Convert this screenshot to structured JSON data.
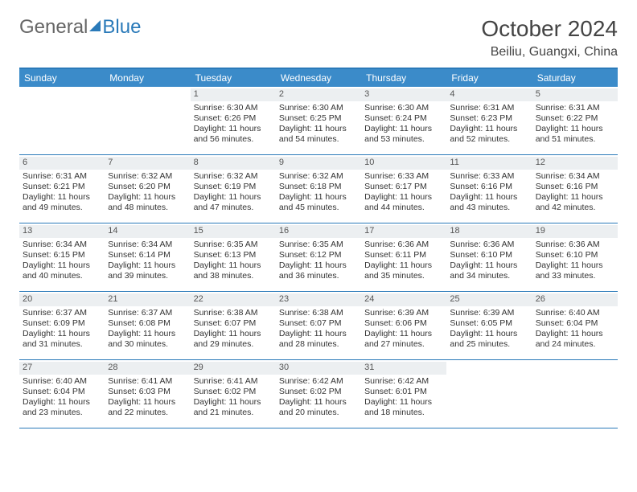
{
  "brand": {
    "part1": "General",
    "part2": "Blue"
  },
  "title": "October 2024",
  "location": "Beiliu, Guangxi, China",
  "colors": {
    "header_bg": "#3b8bc9",
    "border": "#2a7ab9",
    "daynum_bg": "#eceff1",
    "text": "#333333",
    "background": "#ffffff"
  },
  "typography": {
    "month_title_fontsize": 28,
    "location_fontsize": 16,
    "weekday_fontsize": 12,
    "cell_fontsize": 10.5
  },
  "weekdays": [
    "Sunday",
    "Monday",
    "Tuesday",
    "Wednesday",
    "Thursday",
    "Friday",
    "Saturday"
  ],
  "weeks": [
    [
      null,
      null,
      {
        "n": "1",
        "sunrise": "6:30 AM",
        "sunset": "6:26 PM",
        "daylight": "11 hours and 56 minutes."
      },
      {
        "n": "2",
        "sunrise": "6:30 AM",
        "sunset": "6:25 PM",
        "daylight": "11 hours and 54 minutes."
      },
      {
        "n": "3",
        "sunrise": "6:30 AM",
        "sunset": "6:24 PM",
        "daylight": "11 hours and 53 minutes."
      },
      {
        "n": "4",
        "sunrise": "6:31 AM",
        "sunset": "6:23 PM",
        "daylight": "11 hours and 52 minutes."
      },
      {
        "n": "5",
        "sunrise": "6:31 AM",
        "sunset": "6:22 PM",
        "daylight": "11 hours and 51 minutes."
      }
    ],
    [
      {
        "n": "6",
        "sunrise": "6:31 AM",
        "sunset": "6:21 PM",
        "daylight": "11 hours and 49 minutes."
      },
      {
        "n": "7",
        "sunrise": "6:32 AM",
        "sunset": "6:20 PM",
        "daylight": "11 hours and 48 minutes."
      },
      {
        "n": "8",
        "sunrise": "6:32 AM",
        "sunset": "6:19 PM",
        "daylight": "11 hours and 47 minutes."
      },
      {
        "n": "9",
        "sunrise": "6:32 AM",
        "sunset": "6:18 PM",
        "daylight": "11 hours and 45 minutes."
      },
      {
        "n": "10",
        "sunrise": "6:33 AM",
        "sunset": "6:17 PM",
        "daylight": "11 hours and 44 minutes."
      },
      {
        "n": "11",
        "sunrise": "6:33 AM",
        "sunset": "6:16 PM",
        "daylight": "11 hours and 43 minutes."
      },
      {
        "n": "12",
        "sunrise": "6:34 AM",
        "sunset": "6:16 PM",
        "daylight": "11 hours and 42 minutes."
      }
    ],
    [
      {
        "n": "13",
        "sunrise": "6:34 AM",
        "sunset": "6:15 PM",
        "daylight": "11 hours and 40 minutes."
      },
      {
        "n": "14",
        "sunrise": "6:34 AM",
        "sunset": "6:14 PM",
        "daylight": "11 hours and 39 minutes."
      },
      {
        "n": "15",
        "sunrise": "6:35 AM",
        "sunset": "6:13 PM",
        "daylight": "11 hours and 38 minutes."
      },
      {
        "n": "16",
        "sunrise": "6:35 AM",
        "sunset": "6:12 PM",
        "daylight": "11 hours and 36 minutes."
      },
      {
        "n": "17",
        "sunrise": "6:36 AM",
        "sunset": "6:11 PM",
        "daylight": "11 hours and 35 minutes."
      },
      {
        "n": "18",
        "sunrise": "6:36 AM",
        "sunset": "6:10 PM",
        "daylight": "11 hours and 34 minutes."
      },
      {
        "n": "19",
        "sunrise": "6:36 AM",
        "sunset": "6:10 PM",
        "daylight": "11 hours and 33 minutes."
      }
    ],
    [
      {
        "n": "20",
        "sunrise": "6:37 AM",
        "sunset": "6:09 PM",
        "daylight": "11 hours and 31 minutes."
      },
      {
        "n": "21",
        "sunrise": "6:37 AM",
        "sunset": "6:08 PM",
        "daylight": "11 hours and 30 minutes."
      },
      {
        "n": "22",
        "sunrise": "6:38 AM",
        "sunset": "6:07 PM",
        "daylight": "11 hours and 29 minutes."
      },
      {
        "n": "23",
        "sunrise": "6:38 AM",
        "sunset": "6:07 PM",
        "daylight": "11 hours and 28 minutes."
      },
      {
        "n": "24",
        "sunrise": "6:39 AM",
        "sunset": "6:06 PM",
        "daylight": "11 hours and 27 minutes."
      },
      {
        "n": "25",
        "sunrise": "6:39 AM",
        "sunset": "6:05 PM",
        "daylight": "11 hours and 25 minutes."
      },
      {
        "n": "26",
        "sunrise": "6:40 AM",
        "sunset": "6:04 PM",
        "daylight": "11 hours and 24 minutes."
      }
    ],
    [
      {
        "n": "27",
        "sunrise": "6:40 AM",
        "sunset": "6:04 PM",
        "daylight": "11 hours and 23 minutes."
      },
      {
        "n": "28",
        "sunrise": "6:41 AM",
        "sunset": "6:03 PM",
        "daylight": "11 hours and 22 minutes."
      },
      {
        "n": "29",
        "sunrise": "6:41 AM",
        "sunset": "6:02 PM",
        "daylight": "11 hours and 21 minutes."
      },
      {
        "n": "30",
        "sunrise": "6:42 AM",
        "sunset": "6:02 PM",
        "daylight": "11 hours and 20 minutes."
      },
      {
        "n": "31",
        "sunrise": "6:42 AM",
        "sunset": "6:01 PM",
        "daylight": "11 hours and 18 minutes."
      },
      null,
      null
    ]
  ],
  "labels": {
    "sunrise": "Sunrise:",
    "sunset": "Sunset:",
    "daylight": "Daylight:"
  }
}
